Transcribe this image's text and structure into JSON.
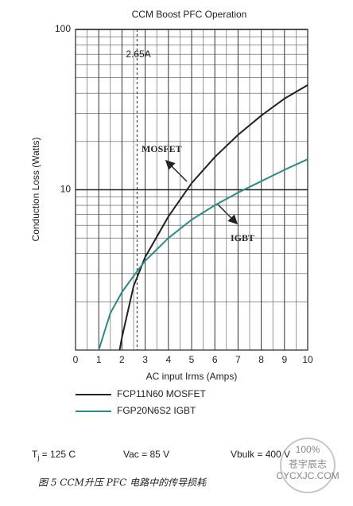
{
  "chart_data": {
    "type": "line",
    "title": "CCM Boost PFC Operation",
    "x_label": "AC input Irms (Amps)",
    "y_label": "Conduction Loss (Watts)",
    "log_y": true,
    "grid": true,
    "xlim": [
      0,
      10
    ],
    "xticks": [
      0,
      1,
      2,
      3,
      4,
      5,
      6,
      7,
      8,
      9,
      10
    ],
    "xgrid_minor": [
      0.5,
      1.5,
      2.5,
      3.5,
      4.5,
      5.5,
      6.5,
      7.5,
      8.5,
      9.5
    ],
    "ylim": [
      1,
      100
    ],
    "yticks": [
      10,
      100
    ],
    "ygrid_minor": [
      2,
      3,
      4,
      5,
      6,
      7,
      8,
      9,
      20,
      30,
      40,
      50,
      60,
      70,
      80,
      90
    ],
    "series": [
      {
        "name": "FCP11N60 MOSFET",
        "color": "#222222",
        "label": "MOSFET",
        "x": [
          1.9,
          2,
          2.5,
          3,
          4,
          5,
          6,
          7,
          8,
          9,
          10
        ],
        "values": [
          1.0,
          1.2,
          2.5,
          3.8,
          6.8,
          11,
          16,
          22,
          29,
          37,
          45
        ]
      },
      {
        "name": "FGP20N6S2 IGBT",
        "color": "#2a8a8a",
        "label": "IGBT",
        "x": [
          1.0,
          1.5,
          2,
          2.65,
          3,
          4,
          5,
          6,
          7,
          8,
          9,
          10
        ],
        "values": [
          1.0,
          1.7,
          2.3,
          3.1,
          3.6,
          5.0,
          6.5,
          8,
          9.6,
          11.3,
          13.3,
          15.5
        ]
      }
    ],
    "marker_line": {
      "x": 2.65,
      "label": "2.65A"
    },
    "conditions": {
      "tj_symbol": "T",
      "tj_subscript": "j",
      "tj_value": " = 125 C",
      "vac": "Vac = 85 V",
      "vbulk": "Vbulk = 400 V"
    },
    "caption": "图 5    CCM升压 PFC 电路中的传导损耗",
    "watermark": {
      "percent": "100%",
      "name": "苍宇辰志",
      "site": "CYCXJC.COM"
    }
  }
}
